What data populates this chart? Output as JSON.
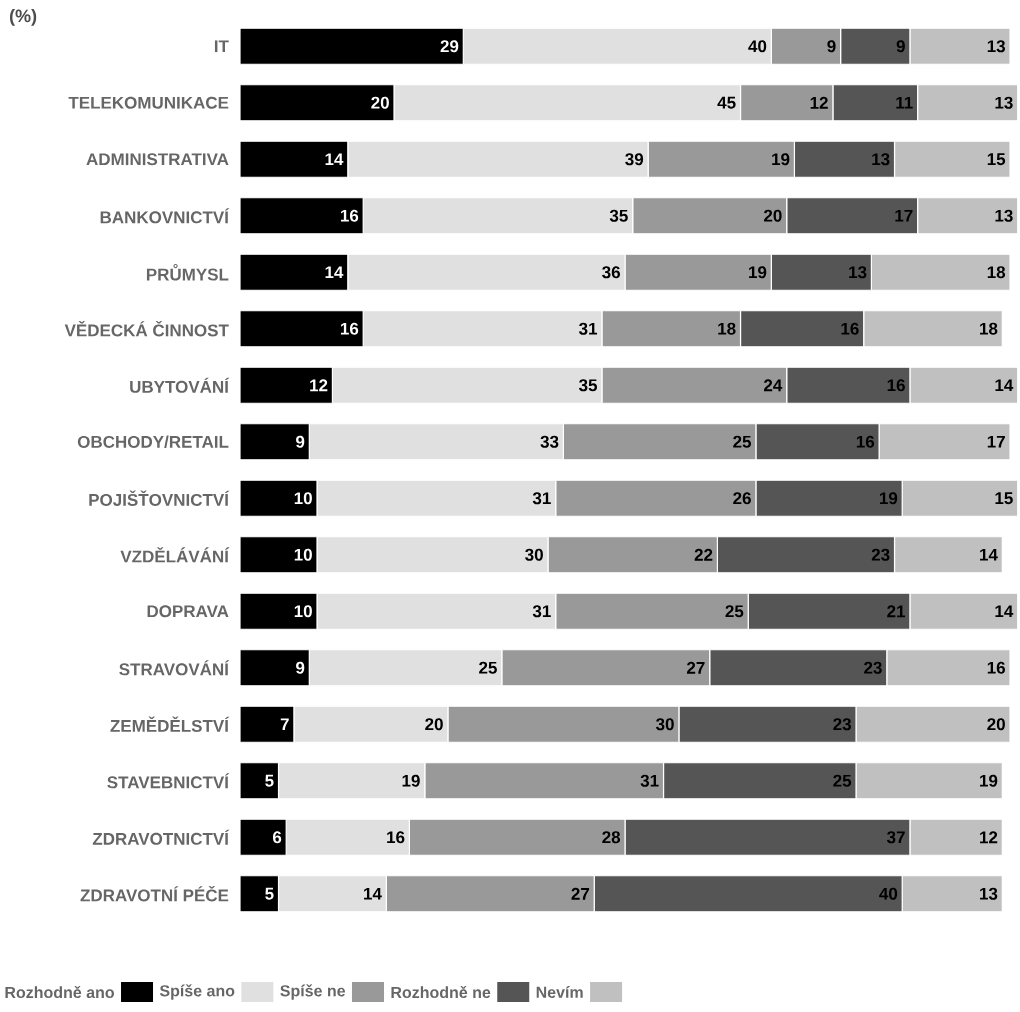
{
  "chart_data": {
    "type": "bar",
    "orientation": "horizontal",
    "stacked": true,
    "subtitle": "(%)",
    "categories": [
      "IT",
      "TELEKOMUNIKACE",
      "ADMINISTRATIVA",
      "BANKOVNICTVÍ",
      "PRŮMYSL",
      "VĚDECKÁ ČINNOST",
      "UBYTOVÁNÍ",
      "OBCHODY/RETAIL",
      "POJIŠŤOVNICTVÍ",
      "VZDĚLÁVÁNÍ",
      "DOPRAVA",
      "STRAVOVÁNÍ",
      "ZEMĚDĚLSTVÍ",
      "STAVEBNICTVÍ",
      "ZDRAVOTNICTVÍ",
      "ZDRAVOTNÍ PÉČE"
    ],
    "series": [
      {
        "name": "Rozhodně ano",
        "color": "#000000",
        "values": [
          29,
          20,
          14,
          16,
          14,
          16,
          12,
          9,
          10,
          10,
          10,
          9,
          7,
          5,
          6,
          5
        ]
      },
      {
        "name": "Spíše ano",
        "color": "#e0e0e0",
        "values": [
          40,
          45,
          39,
          35,
          36,
          31,
          35,
          33,
          31,
          30,
          31,
          25,
          20,
          19,
          16,
          14
        ]
      },
      {
        "name": "Spíše ne",
        "color": "#999999",
        "values": [
          9,
          12,
          19,
          20,
          19,
          18,
          24,
          25,
          26,
          22,
          25,
          27,
          30,
          31,
          28,
          27
        ]
      },
      {
        "name": "Rozhodně ne",
        "color": "#555555",
        "values": [
          9,
          11,
          13,
          17,
          13,
          16,
          16,
          16,
          19,
          23,
          21,
          23,
          23,
          25,
          37,
          40
        ]
      },
      {
        "name": "Nevím",
        "color": "#c0c0c0",
        "values": [
          13,
          13,
          15,
          13,
          18,
          18,
          14,
          17,
          15,
          14,
          14,
          16,
          20,
          19,
          12,
          13
        ]
      }
    ],
    "data_labels": true,
    "legend": "bottom"
  }
}
